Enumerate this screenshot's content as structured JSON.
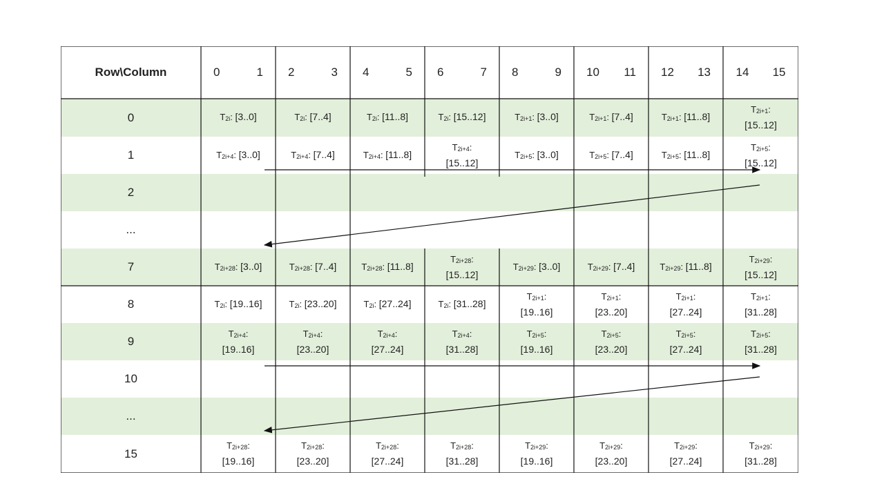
{
  "header": {
    "corner_label": "Row\\Column",
    "column_pairs": [
      [
        "0",
        "1"
      ],
      [
        "2",
        "3"
      ],
      [
        "4",
        "5"
      ],
      [
        "6",
        "7"
      ],
      [
        "8",
        "9"
      ],
      [
        "10",
        "11"
      ],
      [
        "12",
        "13"
      ],
      [
        "14",
        "15"
      ]
    ]
  },
  "fill_color": "#e2efda",
  "rows": [
    {
      "label": "0",
      "green": true,
      "cells": [
        {
          "sub": "2i",
          "range": "[3..0]"
        },
        {
          "sub": "2i",
          "range": "[7..4]"
        },
        {
          "sub": "2i",
          "range": "[11..8]"
        },
        {
          "sub": "2i",
          "range": "[15..12]"
        },
        {
          "sub": "2i+1",
          "range": "[3..0]"
        },
        {
          "sub": "2i+1",
          "range": "[7..4]"
        },
        {
          "sub": "2i+1",
          "range": "[11..8]"
        },
        {
          "sub": "2i+1",
          "range": "[15..12]"
        }
      ]
    },
    {
      "label": "1",
      "green": false,
      "cells": [
        {
          "sub": "2i+4",
          "range": "[3..0]"
        },
        {
          "sub": "2i+4",
          "range": "[7..4]"
        },
        {
          "sub": "2i+4",
          "range": "[11..8]"
        },
        {
          "sub": "2i+4",
          "range": "[15..12]"
        },
        {
          "sub": "2i+5",
          "range": "[3..0]"
        },
        {
          "sub": "2i+5",
          "range": "[7..4]"
        },
        {
          "sub": "2i+5",
          "range": "[11..8]"
        },
        {
          "sub": "2i+5",
          "range": "[15..12]"
        }
      ]
    },
    {
      "label": "2",
      "green": true,
      "cells": []
    },
    {
      "label": "...",
      "green": false,
      "cells": []
    },
    {
      "label": "7",
      "green": true,
      "cells": [
        {
          "sub": "2i+28",
          "range": "[3..0]"
        },
        {
          "sub": "2i+28",
          "range": "[7..4]"
        },
        {
          "sub": "2i+28",
          "range": "[11..8]"
        },
        {
          "sub": "2i+28",
          "range": "[15..12]"
        },
        {
          "sub": "2i+29",
          "range": "[3..0]"
        },
        {
          "sub": "2i+29",
          "range": "[7..4]"
        },
        {
          "sub": "2i+29",
          "range": "[11..8]"
        },
        {
          "sub": "2i+29",
          "range": "[15..12]"
        }
      ]
    },
    {
      "label": "8",
      "green": false,
      "cells": [
        {
          "sub": "2i",
          "range": "[19..16]"
        },
        {
          "sub": "2i",
          "range": "[23..20]"
        },
        {
          "sub": "2i",
          "range": "[27..24]"
        },
        {
          "sub": "2i",
          "range": "[31..28]"
        },
        {
          "sub": "2i+1",
          "range": "[19..16]"
        },
        {
          "sub": "2i+1",
          "range": "[23..20]"
        },
        {
          "sub": "2i+1",
          "range": "[27..24]"
        },
        {
          "sub": "2i+1",
          "range": "[31..28]"
        }
      ]
    },
    {
      "label": "9",
      "green": true,
      "cells": [
        {
          "sub": "2i+4",
          "range": "[19..16]"
        },
        {
          "sub": "2i+4",
          "range": "[23..20]"
        },
        {
          "sub": "2i+4",
          "range": "[27..24]"
        },
        {
          "sub": "2i+4",
          "range": "[31..28]"
        },
        {
          "sub": "2i+5",
          "range": "[19..16]"
        },
        {
          "sub": "2i+5",
          "range": "[23..20]"
        },
        {
          "sub": "2i+5",
          "range": "[27..24]"
        },
        {
          "sub": "2i+5",
          "range": "[31..28]"
        }
      ]
    },
    {
      "label": "10",
      "green": false,
      "cells": []
    },
    {
      "label": "...",
      "green": true,
      "cells": []
    },
    {
      "label": "15",
      "green": false,
      "cells": [
        {
          "sub": "2i+28",
          "range": "[19..16]"
        },
        {
          "sub": "2i+28",
          "range": "[23..20]"
        },
        {
          "sub": "2i+28",
          "range": "[27..24]"
        },
        {
          "sub": "2i+28",
          "range": "[31..28]"
        },
        {
          "sub": "2i+29",
          "range": "[19..16]"
        },
        {
          "sub": "2i+29",
          "range": "[23..20]"
        },
        {
          "sub": "2i+29",
          "range": "[27..24]"
        },
        {
          "sub": "2i+29",
          "range": "[31..28]"
        }
      ]
    }
  ]
}
